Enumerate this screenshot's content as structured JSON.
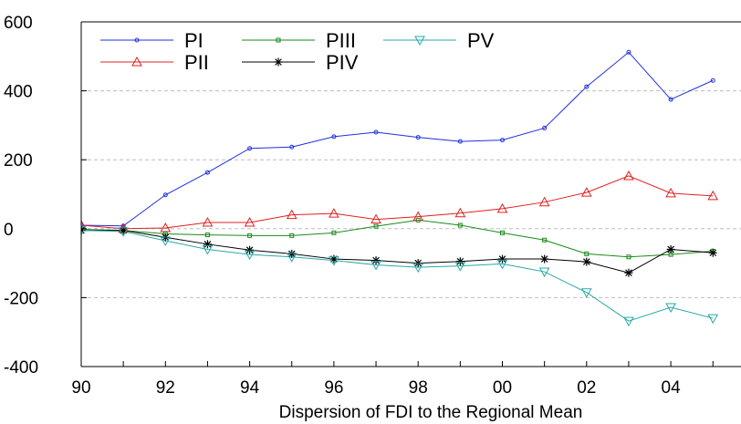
{
  "chart_data": {
    "type": "line",
    "title": "",
    "xlabel": "Dispersion of FDI to the Regional Mean",
    "ylabel": "",
    "x": [
      1990,
      1991,
      1992,
      1993,
      1994,
      1995,
      1996,
      1997,
      1998,
      1999,
      2000,
      2001,
      2002,
      2003,
      2004,
      2005
    ],
    "xlim": [
      1990,
      2005
    ],
    "x_ticks": [
      {
        "value": 1990,
        "label": "90"
      },
      {
        "value": 1992,
        "label": "92"
      },
      {
        "value": 1994,
        "label": "94"
      },
      {
        "value": 1996,
        "label": "96"
      },
      {
        "value": 1998,
        "label": "98"
      },
      {
        "value": 2000,
        "label": "00"
      },
      {
        "value": 2002,
        "label": "02"
      },
      {
        "value": 2004,
        "label": "04"
      }
    ],
    "ylim": [
      -400,
      600
    ],
    "y_ticks": [
      {
        "value": -400,
        "label": "-400"
      },
      {
        "value": -200,
        "label": "-200"
      },
      {
        "value": 0,
        "label": "0"
      },
      {
        "value": 200,
        "label": "200"
      },
      {
        "value": 400,
        "label": "400"
      },
      {
        "value": 600,
        "label": "600"
      }
    ],
    "grid": "horizontal dashed",
    "legend_position": "top-left",
    "series": [
      {
        "name": "PI",
        "color": "#1f2fe0",
        "marker": "circle",
        "values": [
          10,
          8,
          98,
          163,
          233,
          237,
          267,
          280,
          265,
          253,
          257,
          292,
          412,
          512,
          375,
          430
        ]
      },
      {
        "name": "PII",
        "color": "#e02020",
        "marker": "triangle-up",
        "values": [
          10,
          0,
          2,
          18,
          18,
          40,
          44,
          27,
          35,
          45,
          58,
          77,
          105,
          153,
          103,
          95
        ]
      },
      {
        "name": "PIII",
        "color": "#1a8a1a",
        "marker": "square",
        "values": [
          -2,
          -5,
          -15,
          -18,
          -20,
          -20,
          -12,
          7,
          25,
          10,
          -12,
          -33,
          -73,
          -82,
          -75,
          -65
        ]
      },
      {
        "name": "PIV",
        "color": "#000000",
        "marker": "star",
        "values": [
          -5,
          -5,
          -25,
          -45,
          -62,
          -73,
          -88,
          -92,
          -100,
          -95,
          -88,
          -88,
          -96,
          -128,
          -60,
          -70
        ]
      },
      {
        "name": "PV",
        "color": "#2aa8a8",
        "marker": "triangle-down",
        "values": [
          -5,
          -8,
          -35,
          -60,
          -75,
          -82,
          -92,
          -105,
          -112,
          -108,
          -102,
          -125,
          -185,
          -268,
          -228,
          -260
        ]
      }
    ]
  }
}
